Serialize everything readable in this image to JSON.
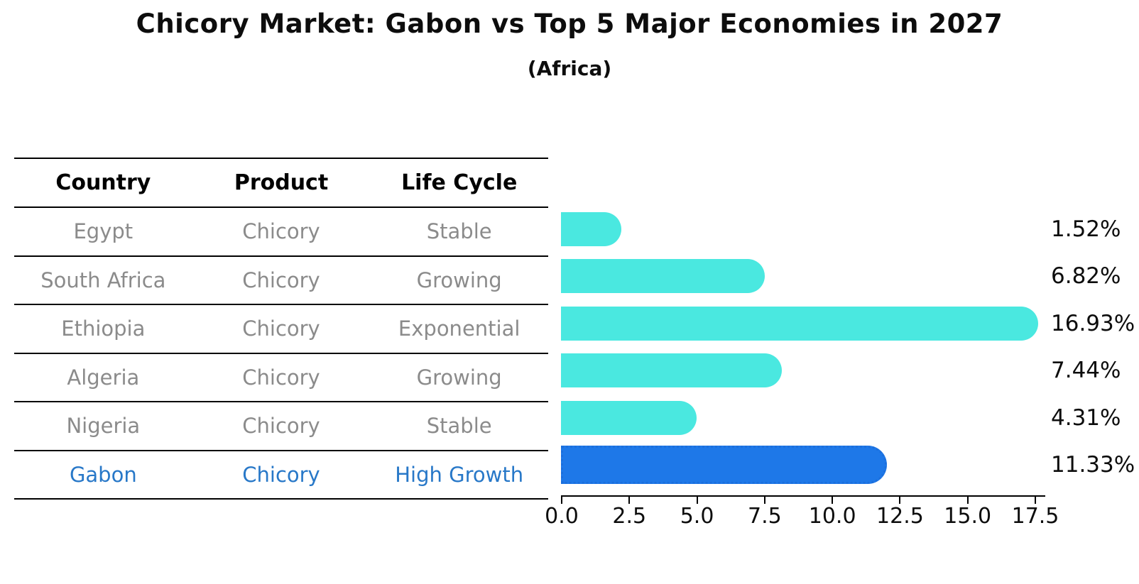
{
  "title": "Chicory Market: Gabon vs Top 5 Major Economies in 2027",
  "subtitle": "(Africa)",
  "table": {
    "headers": [
      "Country",
      "Product",
      "Life Cycle"
    ],
    "rows": [
      {
        "country": "Egypt",
        "product": "Chicory",
        "life_cycle": "Stable",
        "highlight": false
      },
      {
        "country": "South Africa",
        "product": "Chicory",
        "life_cycle": "Growing",
        "highlight": false
      },
      {
        "country": "Ethiopia",
        "product": "Chicory",
        "life_cycle": "Exponential",
        "highlight": false
      },
      {
        "country": "Algeria",
        "product": "Chicory",
        "life_cycle": "Growing",
        "highlight": false
      },
      {
        "country": "Nigeria",
        "product": "Chicory",
        "life_cycle": "Stable",
        "highlight": false
      },
      {
        "country": "Gabon",
        "product": "Chicory",
        "life_cycle": "High Growth",
        "highlight": true
      }
    ]
  },
  "chart_data": {
    "type": "bar",
    "orientation": "horizontal",
    "title": "Chicory Market: Gabon vs Top 5 Major Economies in 2027",
    "subtitle": "(Africa)",
    "categories": [
      "Egypt",
      "South Africa",
      "Ethiopia",
      "Algeria",
      "Nigeria",
      "Gabon"
    ],
    "values": [
      1.52,
      6.82,
      16.93,
      7.44,
      4.31,
      11.33
    ],
    "value_labels": [
      "1.52%",
      "6.82%",
      "16.93%",
      "7.44%",
      "4.31%",
      "11.33%"
    ],
    "unit": "%",
    "xlim": [
      0,
      17.5
    ],
    "xticks": [
      "0.0",
      "2.5",
      "5.0",
      "7.5",
      "10.0",
      "12.5",
      "15.0",
      "17.5"
    ],
    "highlight_index": 5,
    "grid": false,
    "legend": "none",
    "colors": {
      "bar": "#4ae8e0",
      "highlight_bar": "#1e78e8",
      "highlight_bar_edge": "#1b6fdd",
      "highlight_text": "#2878c8",
      "table_text": "#8b8b8b",
      "axis_text": "#0d0d0d"
    }
  }
}
